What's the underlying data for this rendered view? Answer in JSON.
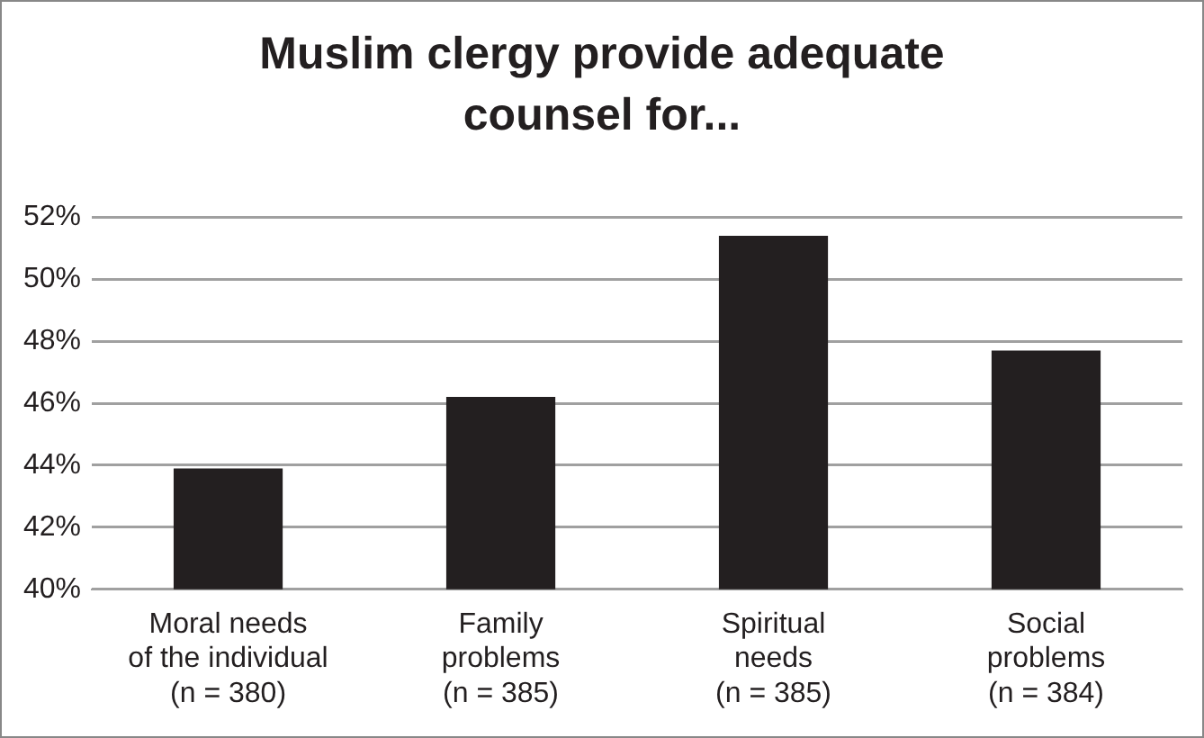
{
  "chart_data": {
    "type": "bar",
    "title": "Muslim clergy provide adequate counsel for...",
    "categories": [
      "Moral needs\nof the individual\n(n = 380)",
      "Family\nproblems\n(n = 385)",
      "Spiritual\nneeds\n(n = 385)",
      "Social\nproblems\n(n = 384)"
    ],
    "values": [
      43.9,
      46.2,
      51.4,
      47.7
    ],
    "color": "#231f20",
    "ylim": [
      40,
      52
    ],
    "yticks": [
      {
        "value": 40,
        "label": "40%"
      },
      {
        "value": 42,
        "label": "42%"
      },
      {
        "value": 44,
        "label": "44%"
      },
      {
        "value": 46,
        "label": "46%"
      },
      {
        "value": 48,
        "label": "48%"
      },
      {
        "value": 50,
        "label": "50%"
      },
      {
        "value": 52,
        "label": "52%"
      }
    ],
    "grid": "y"
  }
}
